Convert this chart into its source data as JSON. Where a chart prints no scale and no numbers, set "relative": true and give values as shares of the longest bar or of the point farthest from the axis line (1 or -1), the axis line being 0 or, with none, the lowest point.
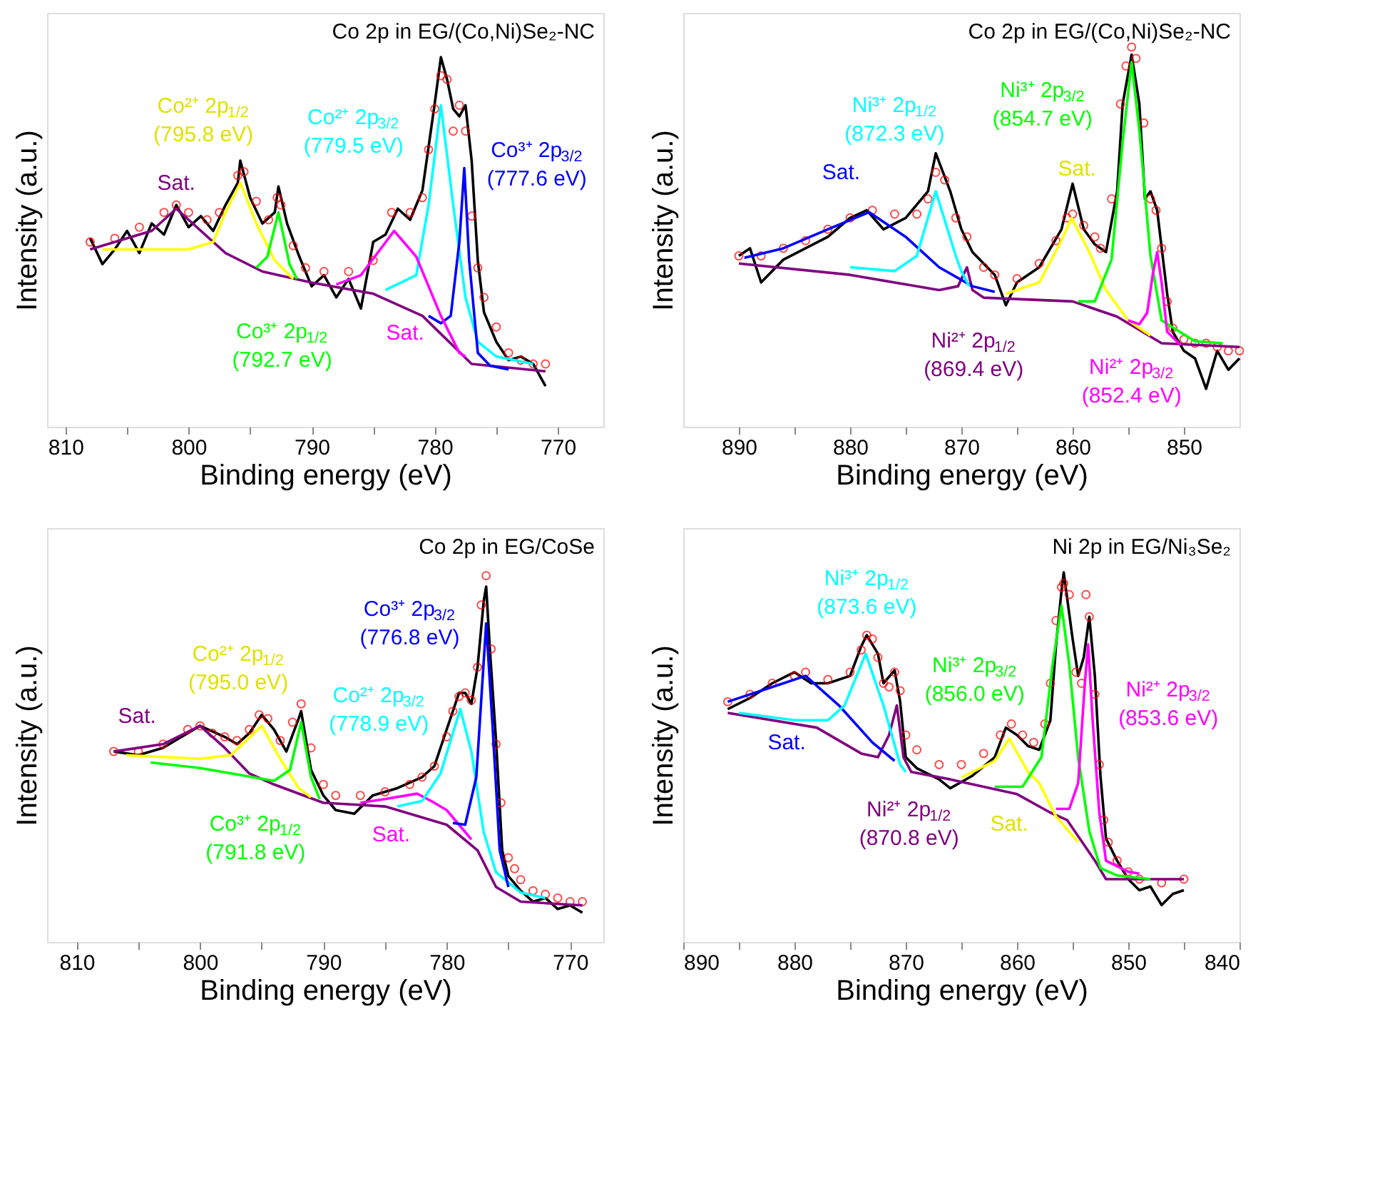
{
  "chart_data": [
    {
      "type": "line",
      "title": "Co 2p in EG/(Co,Ni)Se₂-NC",
      "xlabel": "Binding energy (eV)",
      "ylabel": "Intensity (a.u.)",
      "relative": true,
      "xlim": [
        811.5,
        766.3
      ],
      "xticks": [
        810,
        {
          "value": 805,
          "label": null
        },
        800,
        {
          "value": 795,
          "label": null
        },
        790,
        {
          "value": 785,
          "label": null
        },
        780,
        {
          "value": 775,
          "label": null
        },
        770
      ],
      "series": [
        {
          "type": "line",
          "color": "#000000",
          "x": [
            808,
            807,
            806,
            805,
            804,
            803,
            802,
            801,
            800,
            799,
            798,
            797,
            796,
            795.8,
            795,
            794,
            793,
            792.7,
            792,
            791,
            790,
            789,
            788,
            787,
            786,
            785,
            784,
            783,
            782,
            781,
            780,
            779.5,
            779,
            778.5,
            778,
            777.5,
            777,
            776.5,
            776,
            775,
            774,
            773,
            772,
            771
          ],
          "values": [
            0.51,
            0.44,
            0.48,
            0.53,
            0.47,
            0.55,
            0.52,
            0.6,
            0.54,
            0.57,
            0.53,
            0.6,
            0.66,
            0.72,
            0.62,
            0.55,
            0.58,
            0.65,
            0.55,
            0.46,
            0.38,
            0.41,
            0.35,
            0.4,
            0.32,
            0.5,
            0.52,
            0.59,
            0.56,
            0.64,
            0.875,
            1.0,
            0.94,
            0.86,
            0.84,
            0.87,
            0.72,
            0.45,
            0.31,
            0.23,
            0.18,
            0.19,
            0.17,
            0.11
          ]
        },
        {
          "type": "scatter",
          "marker": "circle",
          "color": "#ff0000",
          "x": [
            808,
            806,
            804,
            802,
            801,
            800,
            798.5,
            797.5,
            796,
            795.5,
            794.5,
            793.5,
            792.8,
            792.5,
            791.5,
            790.5,
            789,
            787,
            785,
            783.5,
            782,
            781,
            780.5,
            780,
            779.5,
            779,
            778.5,
            778,
            777.5,
            777,
            776.5,
            776,
            775,
            774,
            773,
            772,
            771
          ],
          "values": [
            0.5,
            0.51,
            0.54,
            0.58,
            0.6,
            0.58,
            0.56,
            0.58,
            0.68,
            0.69,
            0.61,
            0.56,
            0.62,
            0.6,
            0.49,
            0.43,
            0.42,
            0.42,
            0.45,
            0.58,
            0.58,
            0.62,
            0.75,
            0.86,
            0.95,
            0.94,
            0.8,
            0.87,
            0.8,
            0.57,
            0.43,
            0.35,
            0.27,
            0.2,
            0.18,
            0.17,
            0.17
          ]
        },
        {
          "name": "Sat.",
          "type": "line",
          "color": "#800080",
          "x": [
            808,
            803,
            801,
            799,
            797,
            794,
            790,
            785,
            781,
            777,
            771
          ],
          "values": [
            0.48,
            0.53,
            0.59,
            0.53,
            0.47,
            0.42,
            0.39,
            0.36,
            0.3,
            0.17,
            0.15
          ]
        },
        {
          "name": "Co²⁺ 2p$_{1/2}$\n(795.8 eV)",
          "type": "line",
          "color": "#ffff00",
          "x": [
            807,
            800,
            798,
            797,
            795.8,
            794.5,
            793,
            791.5
          ],
          "values": [
            0.48,
            0.48,
            0.5,
            0.58,
            0.66,
            0.55,
            0.45,
            0.4
          ]
        },
        {
          "name": "Co²⁺ 2p$_{3/2}$\n(779.5 eV)",
          "type": "line",
          "color": "#00ffff",
          "x": [
            784,
            781.5,
            780.5,
            779.5,
            778.5,
            777.5,
            776.5,
            775,
            772
          ],
          "values": [
            0.37,
            0.41,
            0.6,
            0.87,
            0.6,
            0.35,
            0.23,
            0.19,
            0.17
          ]
        },
        {
          "name": "Co³⁺ 2p$_{3/2}$\n(777.6 eV)",
          "type": "line",
          "color": "#0000ff",
          "x": [
            780.5,
            779.5,
            778.7,
            778,
            777.6,
            777.2,
            776.5,
            775.5,
            774
          ],
          "values": [
            0.3,
            0.28,
            0.3,
            0.5,
            0.7,
            0.45,
            0.2,
            0.165,
            0.155
          ]
        },
        {
          "name": "Co³⁺ 2p$_{1/2}$\n(792.7 eV)",
          "type": "line",
          "color": "#00ff00",
          "x": [
            794.5,
            793.6,
            792.7,
            791.8,
            791.2
          ],
          "values": [
            0.43,
            0.46,
            0.58,
            0.44,
            0.4
          ]
        },
        {
          "name": "Sat.",
          "type": "line",
          "color": "#ff00ff",
          "x": [
            788,
            786,
            783.3,
            781.5,
            779.5,
            778,
            777.5
          ],
          "values": [
            0.385,
            0.41,
            0.53,
            0.46,
            0.3,
            0.2,
            0.19
          ]
        }
      ]
    },
    {
      "type": "line",
      "title": "Co 2p in EG/(Co,Ni)Se₂-NC",
      "xlabel": "Binding energy (eV)",
      "ylabel": "Intensity (a.u.)",
      "relative": true,
      "xlim": [
        895,
        845
      ],
      "xticks": [
        890,
        {
          "value": 885,
          "label": null
        },
        880,
        {
          "value": 875,
          "label": null
        },
        870,
        {
          "value": 865,
          "label": null
        },
        860,
        {
          "value": 855,
          "label": null
        },
        850
      ],
      "series": [
        {
          "type": "line",
          "color": "#000000",
          "x": [
            890,
            889,
            888,
            886,
            884,
            882,
            880,
            878.5,
            877,
            875,
            873,
            872.3,
            871,
            870,
            869,
            867,
            866,
            865,
            863,
            861,
            860,
            859,
            858,
            857,
            856,
            855.5,
            854.7,
            854,
            853.5,
            853,
            852.4,
            851.5,
            851,
            850,
            849,
            848,
            847,
            846,
            845
          ],
          "values": [
            0.45,
            0.47,
            0.38,
            0.44,
            0.47,
            0.5,
            0.55,
            0.57,
            0.52,
            0.55,
            0.62,
            0.72,
            0.62,
            0.52,
            0.46,
            0.4,
            0.32,
            0.38,
            0.42,
            0.52,
            0.64,
            0.52,
            0.48,
            0.46,
            0.62,
            0.85,
            0.98,
            0.85,
            0.6,
            0.62,
            0.57,
            0.35,
            0.25,
            0.2,
            0.18,
            0.1,
            0.2,
            0.15,
            0.18
          ]
        },
        {
          "type": "scatter",
          "marker": "circle",
          "color": "#ff0000",
          "x": [
            890,
            888,
            886,
            884,
            882,
            880,
            878,
            876,
            874,
            873,
            872.3,
            871.5,
            870.5,
            869.5,
            868,
            867,
            865,
            863,
            861.5,
            860.5,
            860,
            859,
            858,
            857.5,
            856.5,
            855.7,
            855.2,
            854.7,
            854.3,
            853.6,
            853,
            852.5,
            852,
            851.5,
            851,
            850,
            849,
            848,
            847,
            846,
            845
          ],
          "values": [
            0.45,
            0.45,
            0.47,
            0.49,
            0.52,
            0.55,
            0.57,
            0.56,
            0.56,
            0.6,
            0.67,
            0.65,
            0.55,
            0.5,
            0.42,
            0.4,
            0.39,
            0.43,
            0.49,
            0.55,
            0.56,
            0.53,
            0.5,
            0.47,
            0.6,
            0.85,
            0.95,
            1.0,
            0.97,
            0.8,
            0.6,
            0.57,
            0.47,
            0.33,
            0.26,
            0.23,
            0.22,
            0.22,
            0.21,
            0.2,
            0.2
          ]
        },
        {
          "name": "Ni²⁺ 2p$_{1/2}$\n(869.4 eV)",
          "type": "line",
          "color": "#800080",
          "x": [
            890,
            880,
            872,
            870.3,
            869.5,
            869,
            868,
            860,
            856,
            852,
            845
          ],
          "values": [
            0.43,
            0.4,
            0.36,
            0.37,
            0.42,
            0.36,
            0.34,
            0.33,
            0.29,
            0.22,
            0.21
          ]
        },
        {
          "name": "Sat.",
          "type": "line",
          "color": "#0000ff",
          "x": [
            889.5,
            886,
            882,
            878.3,
            875,
            872,
            869,
            867
          ],
          "values": [
            0.445,
            0.47,
            0.52,
            0.565,
            0.5,
            0.42,
            0.37,
            0.355
          ]
        },
        {
          "name": "Ni³⁺ 2p$_{1/2}$\n(872.3 eV)",
          "type": "line",
          "color": "#00ffff",
          "x": [
            880,
            876,
            874,
            872.3,
            870.5,
            870,
            869.3
          ],
          "values": [
            0.42,
            0.41,
            0.45,
            0.62,
            0.45,
            0.41,
            0.37
          ]
        },
        {
          "name": "Sat.",
          "type": "line",
          "color": "#ffff00",
          "x": [
            866,
            863,
            861,
            860.1,
            858.5,
            857,
            855,
            853
          ],
          "values": [
            0.35,
            0.38,
            0.49,
            0.55,
            0.46,
            0.36,
            0.28,
            0.24
          ]
        },
        {
          "name": "Ni³⁺ 2p$_{3/2}$\n(854.7 eV)",
          "type": "line",
          "color": "#00ff00",
          "x": [
            859.5,
            858,
            856.5,
            855.5,
            854.7,
            854,
            853,
            852,
            849,
            846.5
          ],
          "values": [
            0.33,
            0.33,
            0.44,
            0.75,
            0.96,
            0.78,
            0.45,
            0.28,
            0.225,
            0.22
          ]
        },
        {
          "name": "Ni²⁺ 2p$_{3/2}$\n(852.4 eV)",
          "type": "line",
          "color": "#ff00ff",
          "x": [
            855,
            854,
            853.3,
            852.8,
            852.4,
            852,
            851.5,
            850.3
          ],
          "values": [
            0.28,
            0.27,
            0.3,
            0.4,
            0.46,
            0.38,
            0.25,
            0.215
          ]
        }
      ]
    },
    {
      "type": "line",
      "title": "Co 2p in EG/CoSe",
      "xlabel": "Binding energy (eV)",
      "ylabel": "Intensity (a.u.)",
      "relative": true,
      "xlim": [
        812.4,
        767.3
      ],
      "xticks": [
        810,
        {
          "value": 805,
          "label": null
        },
        800,
        {
          "value": 795,
          "label": null
        },
        790,
        {
          "value": 785,
          "label": null
        },
        780,
        {
          "value": 775,
          "label": null
        },
        770
      ],
      "series": [
        {
          "type": "line",
          "color": "#000000",
          "x": [
            807,
            805,
            803,
            801,
            800,
            798,
            797,
            796,
            795,
            794,
            793,
            792,
            791.8,
            791,
            790,
            789,
            787.5,
            786,
            784,
            782,
            781,
            780,
            779,
            778.5,
            778,
            777.5,
            777,
            776.8,
            776.5,
            776,
            775.5,
            775,
            774,
            773,
            772,
            771,
            770,
            769
          ],
          "values": [
            0.52,
            0.51,
            0.53,
            0.57,
            0.59,
            0.56,
            0.54,
            0.57,
            0.62,
            0.58,
            0.52,
            0.61,
            0.63,
            0.47,
            0.4,
            0.36,
            0.35,
            0.4,
            0.42,
            0.45,
            0.48,
            0.58,
            0.68,
            0.68,
            0.65,
            0.75,
            0.93,
            0.97,
            0.8,
            0.55,
            0.25,
            0.18,
            0.14,
            0.11,
            0.12,
            0.09,
            0.1,
            0.08
          ]
        },
        {
          "type": "scatter",
          "marker": "circle",
          "color": "#ff0000",
          "x": [
            807,
            805,
            803,
            801,
            800,
            799,
            798,
            797,
            796,
            795.2,
            794.5,
            793.5,
            792.5,
            791.8,
            791,
            790,
            789,
            787,
            785,
            783,
            782,
            781,
            780,
            779.5,
            779,
            778.5,
            778,
            777.5,
            777.2,
            776.8,
            776.4,
            776,
            775.6,
            775,
            774.5,
            774,
            773,
            772,
            771,
            770,
            769
          ],
          "values": [
            0.52,
            0.52,
            0.54,
            0.58,
            0.59,
            0.57,
            0.56,
            0.55,
            0.58,
            0.62,
            0.61,
            0.55,
            0.6,
            0.65,
            0.53,
            0.43,
            0.4,
            0.4,
            0.41,
            0.43,
            0.45,
            0.48,
            0.56,
            0.63,
            0.67,
            0.68,
            0.66,
            0.75,
            0.92,
            1.0,
            0.8,
            0.54,
            0.38,
            0.23,
            0.2,
            0.17,
            0.14,
            0.13,
            0.12,
            0.11,
            0.11
          ]
        },
        {
          "name": "Sat.",
          "type": "line",
          "color": "#800080",
          "x": [
            807,
            803,
            800,
            798,
            796,
            794,
            790,
            785,
            780,
            777.5,
            776,
            774,
            769
          ],
          "values": [
            0.52,
            0.54,
            0.59,
            0.53,
            0.46,
            0.43,
            0.38,
            0.37,
            0.32,
            0.25,
            0.15,
            0.11,
            0.1
          ]
        },
        {
          "name": "Co²⁺ 2p$_{1/2}$\n(795.0 eV)",
          "type": "line",
          "color": "#ffff00",
          "x": [
            806,
            800,
            797.5,
            795,
            793.5,
            792,
            791
          ],
          "values": [
            0.51,
            0.5,
            0.51,
            0.59,
            0.5,
            0.42,
            0.395
          ]
        },
        {
          "name": "Co³⁺ 2p$_{1/2}$\n(791.8 eV)",
          "type": "line",
          "color": "#00ff00",
          "x": [
            804,
            800,
            794,
            792.7,
            791.8,
            791,
            790.3
          ],
          "values": [
            0.49,
            0.475,
            0.44,
            0.47,
            0.6,
            0.45,
            0.39
          ]
        },
        {
          "name": "Sat.",
          "type": "line",
          "color": "#ff00ff",
          "x": [
            787,
            785,
            782.4,
            781,
            780,
            778
          ],
          "values": [
            0.38,
            0.39,
            0.405,
            0.38,
            0.36,
            0.28
          ]
        },
        {
          "name": "Co²⁺ 2p$_{3/2}$\n(778.9 eV)",
          "type": "line",
          "color": "#00ffff",
          "x": [
            784,
            782,
            780.5,
            778.9,
            778,
            777,
            776,
            774,
            772
          ],
          "values": [
            0.37,
            0.385,
            0.46,
            0.636,
            0.52,
            0.3,
            0.19,
            0.135,
            0.12
          ]
        },
        {
          "name": "Co³⁺ 2p$_{3/2}$\n(776.8 eV)",
          "type": "line",
          "color": "#0000ff",
          "x": [
            779.5,
            778.5,
            777.6,
            776.8,
            776.3,
            775.7,
            775
          ],
          "values": [
            0.325,
            0.32,
            0.45,
            0.87,
            0.6,
            0.25,
            0.15
          ]
        }
      ]
    },
    {
      "type": "line",
      "title": "Ni 2p in EG/Ni₃Se₂",
      "xlabel": "Binding energy (eV)",
      "ylabel": "Intensity (a.u.)",
      "relative": true,
      "xlim": [
        890,
        840
      ],
      "xticks": [
        890,
        {
          "value": 885,
          "label": null
        },
        880,
        {
          "value": 875,
          "label": null
        },
        870,
        {
          "value": 865,
          "label": null
        },
        860,
        {
          "value": 855,
          "label": null
        },
        850,
        {
          "value": 845,
          "label": null
        },
        840
      ],
      "series": [
        {
          "type": "line",
          "color": "#000000",
          "x": [
            886,
            884,
            882,
            880,
            878.5,
            877,
            875,
            874,
            873.5,
            872.5,
            872,
            871,
            870.5,
            870,
            869,
            867,
            866,
            864,
            862,
            861,
            860,
            859,
            858,
            857,
            856.5,
            856,
            855.8,
            855,
            854.5,
            854,
            853.5,
            853,
            852.5,
            852,
            851,
            850,
            849,
            848,
            847,
            846,
            845
          ],
          "values": [
            0.63,
            0.66,
            0.7,
            0.73,
            0.7,
            0.7,
            0.72,
            0.8,
            0.83,
            0.78,
            0.7,
            0.735,
            0.65,
            0.5,
            0.47,
            0.44,
            0.416,
            0.45,
            0.5,
            0.58,
            0.56,
            0.53,
            0.52,
            0.6,
            0.8,
            0.95,
            1.0,
            0.82,
            0.72,
            0.77,
            0.88,
            0.72,
            0.45,
            0.28,
            0.22,
            0.17,
            0.14,
            0.15,
            0.1,
            0.13,
            0.14
          ]
        },
        {
          "type": "scatter",
          "marker": "circle",
          "color": "#ff0000",
          "x": [
            886,
            884,
            882,
            880,
            879,
            877,
            875,
            874,
            873.5,
            873,
            872.5,
            872,
            871.5,
            871,
            870.5,
            870,
            869,
            867,
            865,
            863,
            861.5,
            860.5,
            859.5,
            858.5,
            857.5,
            857,
            856.5,
            856,
            855.8,
            855.3,
            854.7,
            854.2,
            853.8,
            853.5,
            853,
            852.6,
            852.2,
            851.8,
            851,
            850,
            849,
            847,
            845
          ],
          "values": [
            0.65,
            0.67,
            0.7,
            0.72,
            0.73,
            0.71,
            0.73,
            0.79,
            0.83,
            0.82,
            0.77,
            0.7,
            0.69,
            0.73,
            0.68,
            0.56,
            0.52,
            0.48,
            0.48,
            0.51,
            0.56,
            0.59,
            0.56,
            0.54,
            0.59,
            0.7,
            0.87,
            0.96,
            0.97,
            0.94,
            0.73,
            0.7,
            0.94,
            0.88,
            0.67,
            0.48,
            0.33,
            0.27,
            0.22,
            0.19,
            0.17,
            0.16,
            0.17
          ]
        },
        {
          "name": "Ni²⁺ 2p$_{1/2}$\n(870.8 eV)",
          "type": "line",
          "color": "#800080",
          "x": [
            886,
            878,
            874,
            872.5,
            871.5,
            870.8,
            870.2,
            869.5,
            866,
            860,
            857,
            855.5,
            853,
            852,
            845
          ],
          "values": [
            0.62,
            0.58,
            0.51,
            0.5,
            0.56,
            0.64,
            0.5,
            0.46,
            0.44,
            0.4,
            0.35,
            0.33,
            0.22,
            0.17,
            0.17
          ]
        },
        {
          "name": "Sat.",
          "type": "line",
          "color": "#0000ff",
          "x": [
            886,
            882,
            879,
            876,
            873,
            871
          ],
          "values": [
            0.65,
            0.69,
            0.72,
            0.64,
            0.54,
            0.49
          ]
        },
        {
          "name": "Ni³⁺ 2p$_{1/2}$\n(873.6 eV)",
          "type": "line",
          "color": "#00ffff",
          "x": [
            885,
            880,
            877,
            875.5,
            873.6,
            872,
            870.5,
            870
          ],
          "values": [
            0.62,
            0.6,
            0.6,
            0.64,
            0.78,
            0.64,
            0.48,
            0.46
          ]
        },
        {
          "name": "Sat.",
          "type": "line",
          "color": "#ffff00",
          "x": [
            865,
            862,
            860.7,
            859,
            858,
            856.5,
            854.5
          ],
          "values": [
            0.445,
            0.49,
            0.55,
            0.46,
            0.43,
            0.34,
            0.27
          ]
        },
        {
          "name": "Ni³⁺ 2p$_{3/2}$\n(856.0 eV)",
          "type": "line",
          "color": "#00ff00",
          "x": [
            862,
            859.5,
            857.8,
            856.8,
            856,
            855.3,
            854.5,
            853.5,
            852.5,
            851,
            848
          ],
          "values": [
            0.42,
            0.42,
            0.5,
            0.75,
            0.91,
            0.75,
            0.5,
            0.3,
            0.2,
            0.18,
            0.17
          ]
        },
        {
          "name": "Ni²⁺ 2p$_{3/2}$\n(853.6 eV)",
          "type": "line",
          "color": "#ff00ff",
          "x": [
            856.5,
            855.3,
            854.5,
            853.9,
            853.6,
            853.2,
            852.6,
            852,
            850,
            849
          ],
          "values": [
            0.36,
            0.36,
            0.43,
            0.7,
            0.805,
            0.6,
            0.35,
            0.22,
            0.19,
            0.185
          ]
        }
      ]
    }
  ]
}
